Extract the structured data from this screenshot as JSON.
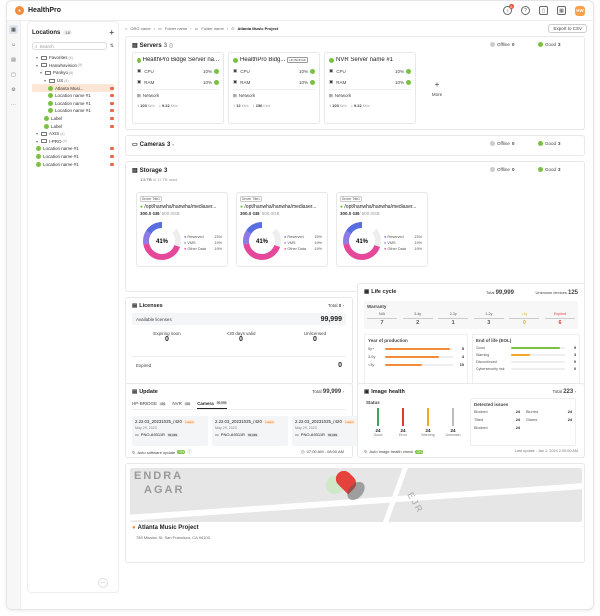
{
  "app": {
    "name": "HealthPro",
    "notif_count": "8",
    "avatar": "HW"
  },
  "sidebar": {
    "title": "Locations",
    "count": "18",
    "search_placeholder": "Search",
    "rows": [
      {
        "label": "Favorites",
        "sub": "(6)",
        "indent": 1,
        "kind": "folder"
      },
      {
        "label": "Hanwhavision",
        "sub": "(8)",
        "indent": 1,
        "kind": "folder"
      },
      {
        "label": "Pankyo",
        "sub": "(8)",
        "indent": 2,
        "kind": "folder"
      },
      {
        "label": "US",
        "sub": "(4)",
        "indent": 3,
        "kind": "folder"
      },
      {
        "label": "Atlanta Musi...",
        "sub": "",
        "indent": 4,
        "kind": "site",
        "selected": true,
        "tail": true
      },
      {
        "label": "Location name #1",
        "sub": "",
        "indent": 4,
        "kind": "site",
        "tail": true
      },
      {
        "label": "Location name #1",
        "sub": "",
        "indent": 4,
        "kind": "site",
        "tail": true
      },
      {
        "label": "Location name #1",
        "sub": "",
        "indent": 4,
        "kind": "site",
        "tail": true
      },
      {
        "label": "Label",
        "sub": "",
        "indent": 3,
        "kind": "site",
        "tail": true
      },
      {
        "label": "Label",
        "sub": "",
        "indent": 3,
        "kind": "site",
        "tail": true
      },
      {
        "label": "AXIS",
        "sub": "(4)",
        "indent": 1,
        "kind": "folder"
      },
      {
        "label": "I-PRO",
        "sub": "(4)",
        "indent": 1,
        "kind": "folder"
      },
      {
        "label": "Location name #1",
        "sub": "",
        "indent": 1,
        "kind": "site",
        "tail": true
      },
      {
        "label": "Location name #1",
        "sub": "",
        "indent": 1,
        "kind": "site",
        "tail": true
      },
      {
        "label": "Location name #1",
        "sub": "",
        "indent": 1,
        "kind": "site",
        "tail": true
      }
    ]
  },
  "breadcrumb": {
    "c1": "ORG name",
    "c2": "Folder name",
    "c3": "Folder name",
    "c4": "Atlanta Music Project",
    "export": "Export to CSV"
  },
  "servers": {
    "title": "Servers",
    "count": "3",
    "offline": "Offline",
    "offline_n": "0",
    "good": "Good",
    "good_n": "3",
    "more": "More",
    "items": [
      {
        "name": "HealthPro Bidge Server na...",
        "tag": "",
        "cpu": "10%",
        "ram": "10%",
        "up": "103",
        "up_u": "Kb/s",
        "down": "9.22",
        "down_u": "Kb/s"
      },
      {
        "name": "HealthPro Bidg...",
        "tag": "HP-BRIDGE",
        "cpu": "10%",
        "ram": "10%",
        "up": "12",
        "up_u": "Kb/s",
        "down": "156",
        "down_u": "Kb/s"
      },
      {
        "name": "NVR Server name #1",
        "tag": "",
        "cpu": "10%",
        "ram": "10%",
        "up": "103",
        "up_u": "Kb/s",
        "down": "9.22",
        "down_u": "Kb/s"
      }
    ],
    "cpu_label": "CPU",
    "ram_label": "RAM",
    "network_label": "Network"
  },
  "cameras": {
    "title": "Cameras",
    "count": "3",
    "offline": "Offline",
    "offline_n": "0",
    "good": "Good",
    "good_n": "3"
  },
  "storage": {
    "title": "Storage",
    "count": "3",
    "used": "1.5 TB",
    "used_of": "of 11 TB used",
    "offline": "Offline",
    "offline_n": "0",
    "good": "Good",
    "good_n": "3",
    "items": [
      {
        "label": "Server Title1",
        "path": "/opt/hanwha/hanwha/mediaser...",
        "cap": "300.0 GB",
        "total": "/ 500.0GB",
        "pct": "41%",
        "reserved": "15%",
        "vms": "19%",
        "other": "19%"
      },
      {
        "label": "Server Title1",
        "path": "/opt/hanwha/hanwha/mediaser...",
        "cap": "300.0 GB",
        "total": "/ 500.0GB",
        "pct": "41%",
        "reserved": "15%",
        "vms": "19%",
        "other": "19%"
      },
      {
        "label": "Server Title1",
        "path": "/opt/hanwha/hanwha/mediaser...",
        "cap": "300.0 GB",
        "total": "/ 500.0GB",
        "pct": "41%",
        "reserved": "15%",
        "vms": "19%",
        "other": "19%"
      }
    ],
    "reserved_label": "Reserved",
    "vms_label": "VMS",
    "other_label": "Other Data"
  },
  "licenses": {
    "title": "Licenses",
    "total_label": "Total",
    "total": "0",
    "available_label": "Available licenses",
    "available": "99,999",
    "expiring_label": "Expiring soon",
    "expiring": "0",
    "valid_label": "<30 days valid",
    "valid": "0",
    "unlicensed_label": "Unlicensed",
    "unlicensed": "0",
    "expired_label": "Expired",
    "expired": "0"
  },
  "lifecycle": {
    "title": "Life cycle",
    "total_label": "Total",
    "total": "99,999",
    "unknown_label": "Unknown devices",
    "unknown": "125",
    "warranty_label": "Warranty",
    "warranty": [
      {
        "k": "N/A",
        "v": "7"
      },
      {
        "k": "3-4y",
        "v": "2"
      },
      {
        "k": "2-3y",
        "v": "1"
      },
      {
        "k": "1-2y",
        "v": "3"
      },
      {
        "k": "<1y",
        "v": "0"
      },
      {
        "k": "Expired",
        "v": "6"
      }
    ],
    "yop_label": "Year of production",
    "yop": [
      {
        "k": "5y+",
        "v": "5"
      },
      {
        "k": "3-5y",
        "v": "4"
      },
      {
        "k": "<3y",
        "v": "10"
      }
    ],
    "eol_label": "End of life (EOL)",
    "eol": [
      {
        "k": "Good",
        "v": "9"
      },
      {
        "k": "Warning",
        "v": "3"
      },
      {
        "k": "Discontinued",
        "v": "0"
      },
      {
        "k": "Cybersecurity risk",
        "v": "0"
      }
    ]
  },
  "update": {
    "title": "Update",
    "total_label": "Total",
    "total": "99,999",
    "tabs": [
      {
        "label": "HP-BRIDGE",
        "n": "456"
      },
      {
        "label": "NVR",
        "n": "456"
      },
      {
        "label": "Camera",
        "n": "99,999"
      }
    ],
    "cards": [
      {
        "ver": "2.22.03_20231025_r420",
        "tag": "Latest",
        "date": "May 29, 2023",
        "model": "PNO-A9311R",
        "n": "99,999"
      },
      {
        "ver": "2.22.03_20231025_r420",
        "tag": "Latest",
        "date": "May 29, 2023",
        "model": "PNO-A9311R",
        "n": "99,999"
      },
      {
        "ver": "2.22.03_20231025_r420",
        "tag": "Latest",
        "date": "May 29, 2023",
        "model": "PNO-A9311R",
        "n": "99,999"
      }
    ],
    "auto_label": "Auto software update",
    "auto_state": "ON",
    "time": "07:00 AM - 08:00 AM"
  },
  "image_health": {
    "title": "Image health",
    "total_label": "Total",
    "total": "223",
    "status_label": "Status",
    "status": [
      {
        "k": "Good",
        "v": "24",
        "color": "#3aa757"
      },
      {
        "k": "Error",
        "v": "24",
        "color": "#e53935"
      },
      {
        "k": "Warning",
        "v": "24",
        "color": "#f5a623"
      },
      {
        "k": "Unknown",
        "v": "24",
        "color": "#bdbdbd"
      }
    ],
    "issues_label": "Detected issues",
    "issues": [
      {
        "k": "Blocked",
        "v": "24"
      },
      {
        "k": "Blurred",
        "v": "24"
      },
      {
        "k": "Tilted",
        "v": "24"
      },
      {
        "k": "Glared",
        "v": "24"
      },
      {
        "k": "Blocked",
        "v": "24"
      }
    ],
    "auto_label": "Auto image health check",
    "auto_state": "ON",
    "last_update": "Last update : Jan 1, 2024 2:00:00 AM"
  },
  "location": {
    "name": "Atlanta Music Project",
    "address": "789 Mission St, San Francisco, CA 94103",
    "map_text_1": "ENDRA",
    "map_text_2": "AGAR",
    "map_text_3": "EJR"
  },
  "colors": {
    "accent": "#f28b3a",
    "good": "#7ac142",
    "error": "#e53935",
    "donut_a": "#5b6ee1",
    "donut_b": "#e5489a",
    "donut_c": "#8c7ae6"
  }
}
